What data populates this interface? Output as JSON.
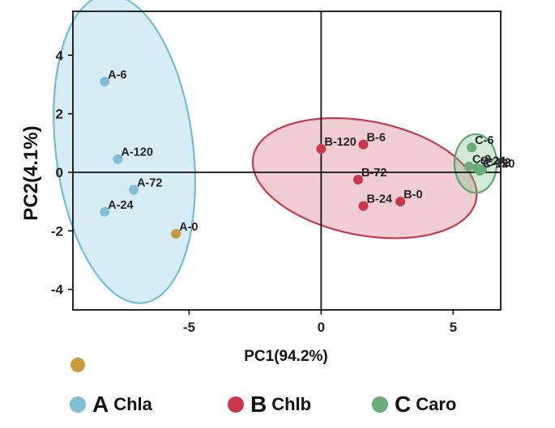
{
  "chart_data": {
    "type": "scatter",
    "xlabel": "PC1(94.2%)",
    "ylabel": "PC2(4.1%)",
    "xlim": [
      -9.4,
      6.8
    ],
    "ylim": [
      -4.7,
      5.5
    ],
    "x_ticks": [
      -5,
      0,
      5
    ],
    "y_ticks": [
      4,
      2,
      0,
      -2,
      -4
    ],
    "grid": false,
    "zero_lines": true,
    "series": [
      {
        "name": "Chla",
        "letter": "A",
        "color": "#7fbfd6",
        "fill": "rgba(140,200,225,0.35)",
        "edge": "#72bcd6",
        "points": [
          {
            "label": "A-6",
            "x": -8.2,
            "y": 3.1
          },
          {
            "label": "A-120",
            "x": -7.7,
            "y": 0.45
          },
          {
            "label": "A-72",
            "x": -7.1,
            "y": -0.6
          },
          {
            "label": "A-24",
            "x": -8.2,
            "y": -1.35
          }
        ],
        "ellipse": {
          "cx": -7.45,
          "cy": 0.8,
          "rx": 2.6,
          "ry": 5.3,
          "angle_deg": -7
        }
      },
      {
        "name": "",
        "color": "#c99a3c",
        "points": [
          {
            "label": "A-0",
            "x": -5.5,
            "y": -2.1
          }
        ]
      },
      {
        "name": "Chlb",
        "letter": "B",
        "color": "#c9374a",
        "fill": "rgba(205,90,105,0.3)",
        "edge": "#c23a4c",
        "points": [
          {
            "label": "B-120",
            "x": 0.0,
            "y": 0.8
          },
          {
            "label": "B-6",
            "x": 1.6,
            "y": 0.95
          },
          {
            "label": "B-72",
            "x": 1.4,
            "y": -0.25
          },
          {
            "label": "B-24",
            "x": 1.6,
            "y": -1.15
          },
          {
            "label": "B-0",
            "x": 3.0,
            "y": -1.0
          }
        ],
        "ellipse": {
          "cx": 1.65,
          "cy": -0.2,
          "rx": 4.3,
          "ry": 1.95,
          "angle_deg": 11
        }
      },
      {
        "name": "Caro",
        "letter": "C",
        "color": "#6aad78",
        "fill": "rgba(130,195,140,0.35)",
        "edge": "#5aa86a",
        "points": [
          {
            "label": "C-6",
            "x": 5.7,
            "y": 0.85
          },
          {
            "label": "C-24",
            "x": 5.9,
            "y": 0.15
          },
          {
            "label": "C-72",
            "x": 6.1,
            "y": 0.1
          },
          {
            "label": "C-0",
            "x": 5.6,
            "y": 0.2
          },
          {
            "label": "C-120",
            "x": 6.0,
            "y": 0.05
          }
        ],
        "ellipse": {
          "cx": 5.85,
          "cy": 0.3,
          "rx": 0.8,
          "ry": 1.0,
          "angle_deg": 0
        }
      }
    ],
    "legend": [
      {
        "letter": "A",
        "name": "Chla",
        "color": "#7fbfd6"
      },
      {
        "letter": "B",
        "name": "Chlb",
        "color": "#c9374a"
      },
      {
        "letter": "C",
        "name": "Caro",
        "color": "#6aad78"
      }
    ],
    "extra_marker_color": "#c99a3c"
  }
}
